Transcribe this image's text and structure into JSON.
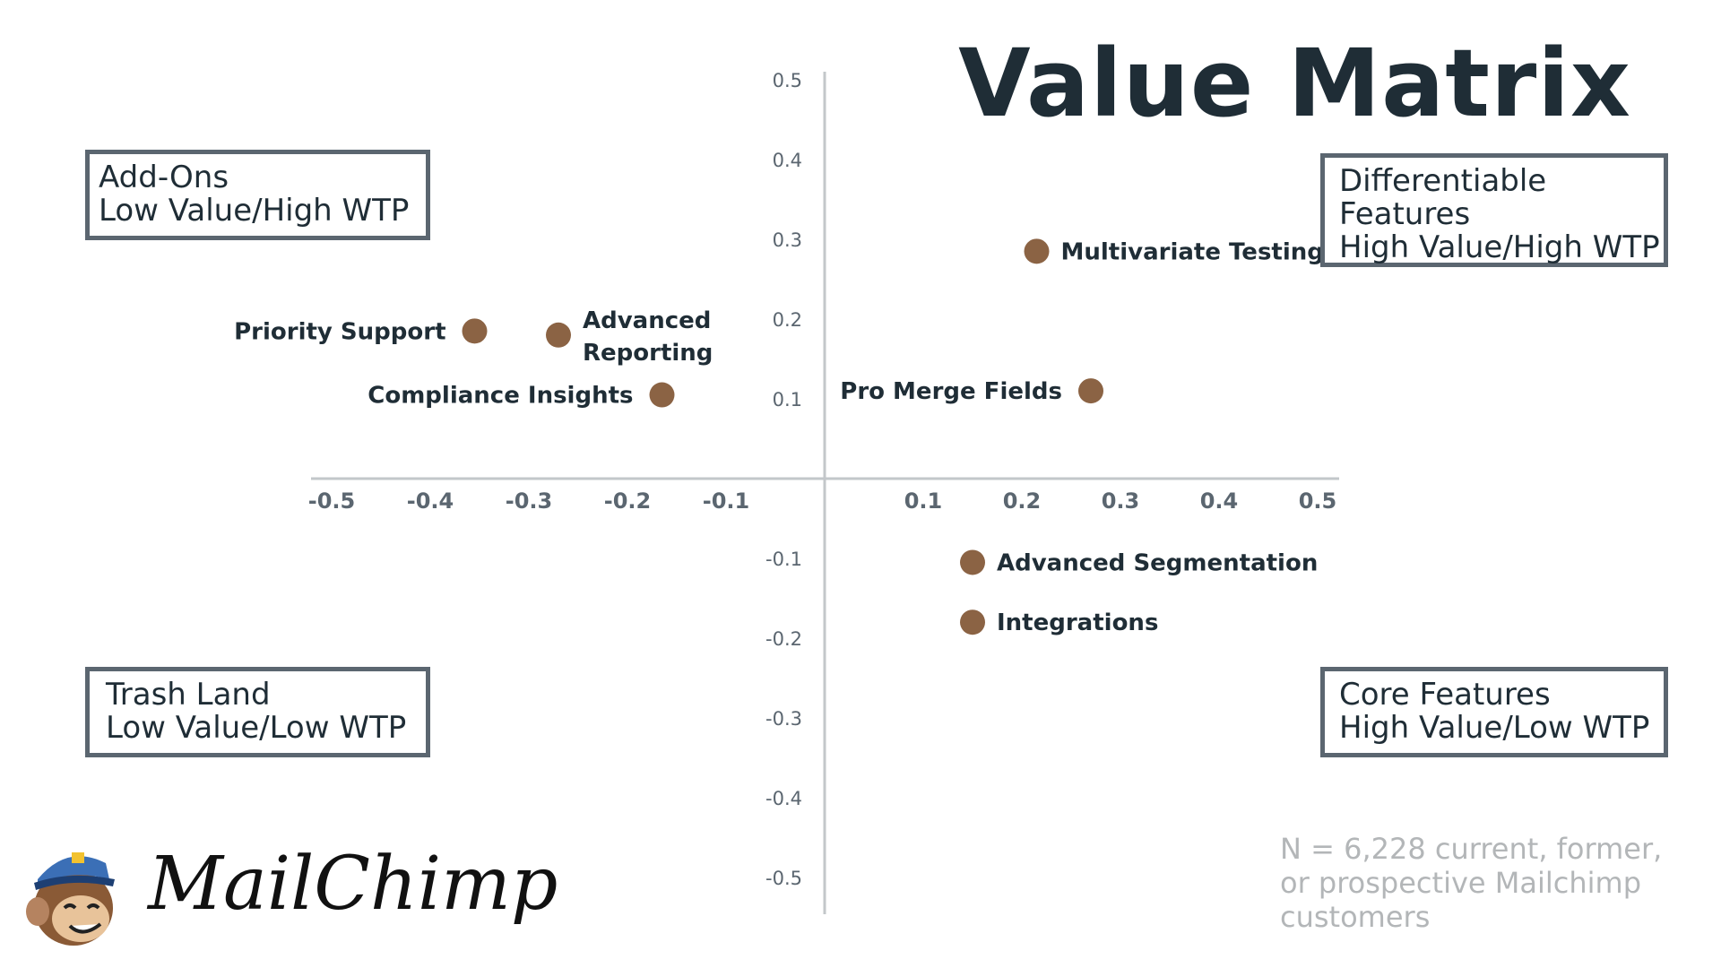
{
  "chart_data": {
    "type": "scatter",
    "title": "Value Matrix",
    "xlim": [
      -0.5,
      0.5
    ],
    "ylim": [
      -0.5,
      0.5
    ],
    "x_ticks": [
      "-0.5",
      "-0.4",
      "-0.3",
      "-0.2",
      "-0.1",
      "0.1",
      "0.2",
      "0.3",
      "0.4",
      "0.5"
    ],
    "y_ticks": [
      "0.5",
      "0.4",
      "0.3",
      "0.2",
      "0.1",
      "-0.1",
      "-0.2",
      "-0.3",
      "-0.4",
      "-0.5"
    ],
    "grid": false,
    "marker_color": "#8b6344",
    "points": [
      {
        "label": "Multivariate Testing",
        "x": 0.215,
        "y": 0.285
      },
      {
        "label": "Priority Support",
        "x": -0.355,
        "y": 0.185
      },
      {
        "label": "Advanced Reporting",
        "x": -0.27,
        "y": 0.18
      },
      {
        "label": "Compliance Insights",
        "x": -0.165,
        "y": 0.105
      },
      {
        "label": "Pro Merge Fields",
        "x": 0.27,
        "y": 0.11
      },
      {
        "label": "Advanced Segmentation",
        "x": 0.15,
        "y": -0.105
      },
      {
        "label": "Integrations",
        "x": 0.15,
        "y": -0.18
      }
    ]
  },
  "quadrants": {
    "top_left": [
      "Add-Ons",
      "Low Value/High WTP"
    ],
    "top_right": [
      "Differentiable",
      "Features",
      "High Value/High WTP"
    ],
    "bottom_left": [
      "Trash Land",
      "Low Value/Low WTP"
    ],
    "bottom_right": [
      "Core Features",
      "High Value/Low WTP"
    ]
  },
  "note": "N = 6,228 current, former, or prospective Mailchimp customers",
  "logo": {
    "text": "MailChimp",
    "icon": "mailchimp-monkey-icon"
  }
}
